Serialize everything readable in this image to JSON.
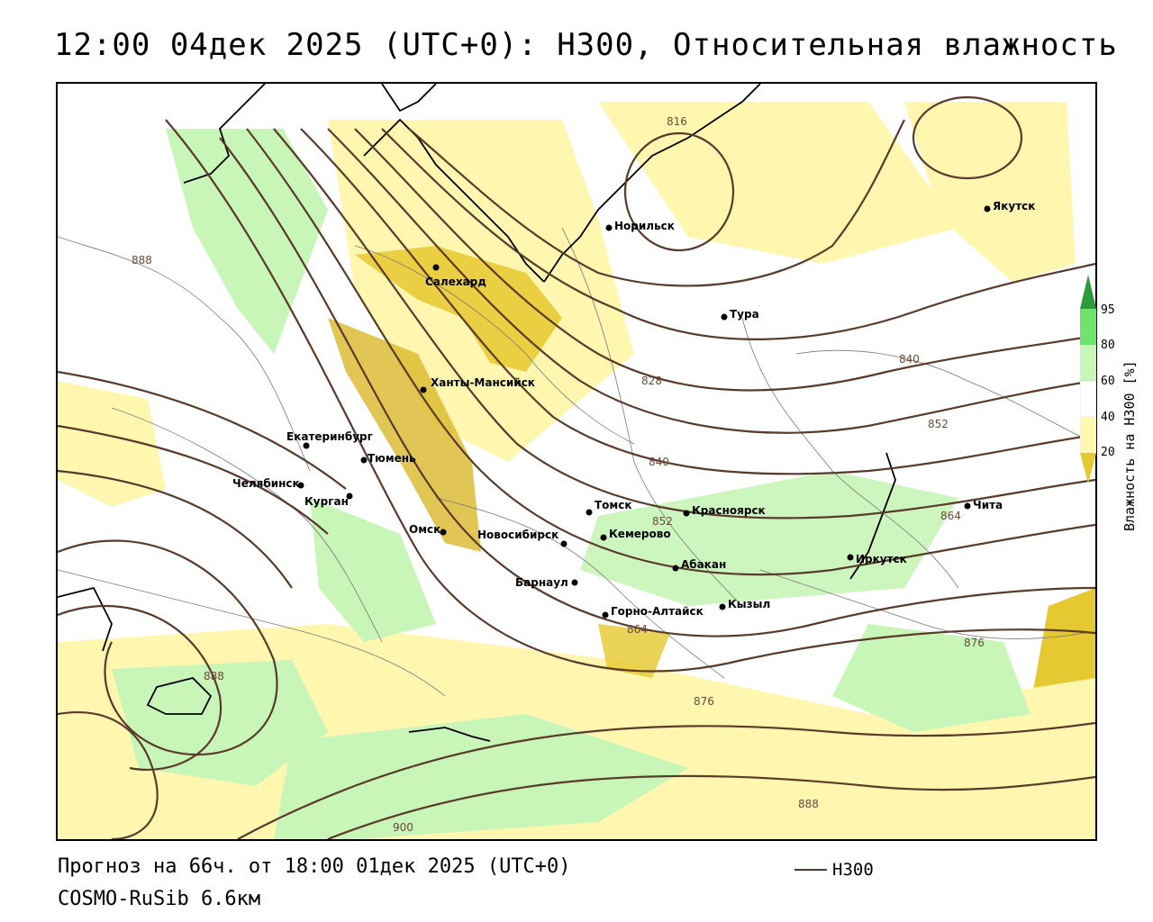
{
  "title": "12:00 04дек 2025 (UTC+0): H300, Относительная влажность",
  "footer": {
    "forecast": "Прогноз на 66ч. от 18:00 01дек 2025 (UTC+0)",
    "model": "COSMO-RuSib 6.6км"
  },
  "legend": {
    "line_label": "H300",
    "line_color": "#5a3a2a"
  },
  "colorbar": {
    "title": "Влажность на H300 [%]",
    "ticks": [
      "95",
      "80",
      "60",
      "40",
      "20"
    ],
    "colors": {
      "dry": "#e6c830",
      "low": "#fff7b0",
      "mid": "#ffffff",
      "moist": "#c8f5b8",
      "wet": "#6fe36f",
      "saturated": "#2d9a3a"
    }
  },
  "cities": [
    {
      "name": "Салехард"
    },
    {
      "name": "Норильск"
    },
    {
      "name": "Тура"
    },
    {
      "name": "Якутск"
    },
    {
      "name": "Ханты-Мансийск"
    },
    {
      "name": "Екатеринбург"
    },
    {
      "name": "Тюмень"
    },
    {
      "name": "Челябинск"
    },
    {
      "name": "Курган"
    },
    {
      "name": "Омск"
    },
    {
      "name": "Новосибирск"
    },
    {
      "name": "Томск"
    },
    {
      "name": "Кемерово"
    },
    {
      "name": "Красноярск"
    },
    {
      "name": "Абакан"
    },
    {
      "name": "Барнаул"
    },
    {
      "name": "Горно-Алтайск"
    },
    {
      "name": "Кызыл"
    },
    {
      "name": "Иркутск"
    },
    {
      "name": "Чита"
    }
  ],
  "isoline_labels": [
    "816",
    "828",
    "840",
    "840",
    "852",
    "852",
    "864",
    "864",
    "876",
    "876",
    "888",
    "888",
    "888",
    "900"
  ]
}
